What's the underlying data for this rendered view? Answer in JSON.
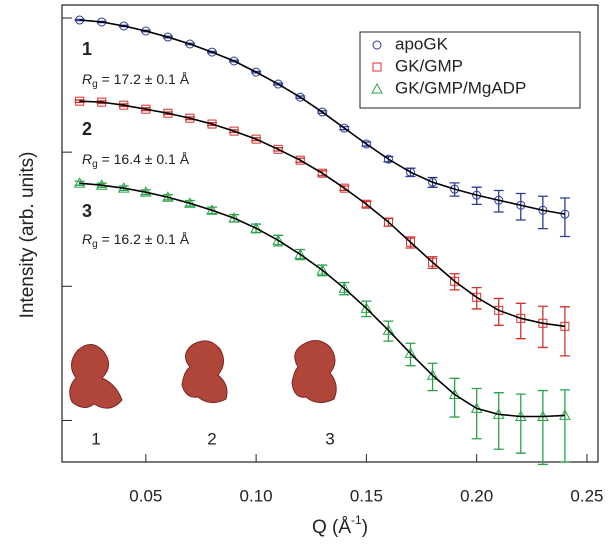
{
  "chart_data": {
    "type": "scatter",
    "xlabel": {
      "main": "Q (Å",
      "sup": "-1",
      "end": ")"
    },
    "ylabel": "Intensity (arb. units)",
    "log_y": true,
    "xlim": [
      0.012,
      0.255
    ],
    "ylim": [
      0.00049,
      1.25
    ],
    "xticks": [
      0.05,
      {
        "value": 0.1,
        "label": "0.10"
      },
      0.15,
      {
        "value": 0.2,
        "label": "0.20"
      },
      0.25
    ],
    "yticks": [
      1,
      0.1,
      0.01,
      0.001
    ],
    "legend": "top-right",
    "x": [
      0.02,
      0.03,
      0.04,
      0.05,
      0.06,
      0.07,
      0.08,
      0.09,
      0.1,
      0.11,
      0.12,
      0.13,
      0.14,
      0.15,
      0.16,
      0.17,
      0.18,
      0.19,
      0.2,
      0.21,
      0.22,
      0.23,
      0.24
    ],
    "series": [
      {
        "name": "apoGK",
        "color": "#2b3d97",
        "marker": "circle",
        "values": [
          0.966,
          0.934,
          0.872,
          0.8,
          0.721,
          0.64,
          0.557,
          0.478,
          0.395,
          0.322,
          0.257,
          0.199,
          0.151,
          0.115,
          0.0887,
          0.0709,
          0.0597,
          0.053,
          0.0478,
          0.0438,
          0.0402,
          0.0369,
          0.0345
        ],
        "errors": [
          0.01,
          0.01,
          0.01,
          0.01,
          0.01,
          0.008,
          0.007,
          0.006,
          0.005,
          0.005,
          0.005,
          0.004,
          0.004,
          0.004,
          0.004,
          0.005,
          0.005,
          0.006,
          0.007,
          0.008,
          0.009,
          0.01,
          0.011
        ]
      },
      {
        "name": "GK/GMP",
        "color": "#d2322d",
        "marker": "square",
        "values": [
          0.24,
          0.236,
          0.224,
          0.209,
          0.195,
          0.179,
          0.162,
          0.1435,
          0.125,
          0.105,
          0.0871,
          0.0697,
          0.0539,
          0.0409,
          0.0301,
          0.0213,
          0.0151,
          0.0109,
          0.00828,
          0.00662,
          0.00577,
          0.0053,
          0.00503
        ],
        "errors": [
          0.005,
          0.005,
          0.005,
          0.005,
          0.004,
          0.004,
          0.004,
          0.003,
          0.003,
          0.003,
          0.003,
          0.003,
          0.002,
          0.002,
          0.002,
          0.002,
          0.0015,
          0.0015,
          0.0015,
          0.0015,
          0.0017,
          0.0018,
          0.002
        ]
      },
      {
        "name": "GK/GMP/MgADP",
        "color": "#2ca34a",
        "marker": "triangle",
        "values": [
          0.0587,
          0.0567,
          0.0539,
          0.0503,
          0.0461,
          0.0416,
          0.0369,
          0.0322,
          0.0271,
          0.022,
          0.0173,
          0.0132,
          0.00966,
          0.00685,
          0.0047,
          0.00316,
          0.00217,
          0.00156,
          0.00123,
          0.00111,
          0.00107,
          0.00107,
          0.00109
        ],
        "errors": [
          0.002,
          0.002,
          0.002,
          0.002,
          0.002,
          0.002,
          0.002,
          0.002,
          0.002,
          0.002,
          0.0015,
          0.0012,
          0.001,
          0.0009,
          0.0008,
          0.0006,
          0.0005,
          0.0005,
          0.0005,
          0.0005,
          0.0005,
          0.0006,
          0.0006
        ]
      }
    ],
    "fit_color": "#000000",
    "fits": [
      {
        "values": [
          0.966,
          0.934,
          0.872,
          0.8,
          0.721,
          0.64,
          0.557,
          0.478,
          0.395,
          0.322,
          0.257,
          0.199,
          0.151,
          0.115,
          0.0887,
          0.0709,
          0.0597,
          0.053,
          0.0478,
          0.0438,
          0.0402,
          0.0369,
          0.0345
        ]
      },
      {
        "values": [
          0.24,
          0.236,
          0.224,
          0.209,
          0.195,
          0.179,
          0.162,
          0.1435,
          0.125,
          0.105,
          0.0871,
          0.0697,
          0.0539,
          0.0409,
          0.0301,
          0.0213,
          0.0151,
          0.0109,
          0.00828,
          0.00662,
          0.00577,
          0.0053,
          0.00503
        ]
      },
      {
        "values": [
          0.0587,
          0.0567,
          0.0539,
          0.0503,
          0.0461,
          0.0416,
          0.0369,
          0.0322,
          0.0271,
          0.022,
          0.0173,
          0.0132,
          0.00966,
          0.00685,
          0.0047,
          0.00316,
          0.00217,
          0.00156,
          0.00123,
          0.00111,
          0.00107,
          0.00107,
          0.00109
        ]
      }
    ],
    "annotations": [
      {
        "number": "1",
        "symbol": "R",
        "subscript": "g",
        "text": " = 17.2 ± 0.1 Å"
      },
      {
        "number": "2",
        "symbol": "R",
        "subscript": "g",
        "text": " = 16.4 ± 0.1 Å"
      },
      {
        "number": "3",
        "symbol": "R",
        "subscript": "g",
        "text": " = 16.2 ± 0.1 Å"
      }
    ],
    "structure_labels": [
      "1",
      "2",
      "3"
    ]
  }
}
